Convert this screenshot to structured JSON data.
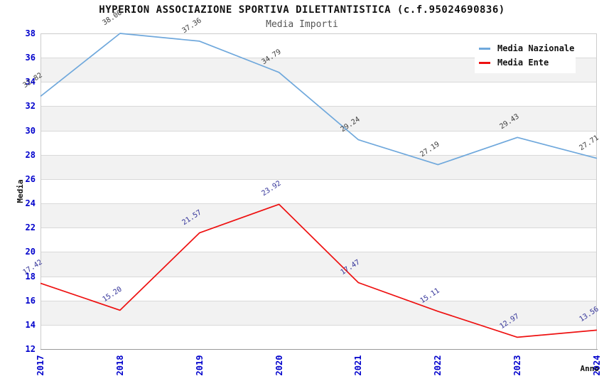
{
  "chart_data": {
    "type": "line",
    "title": "HYPERION ASSOCIAZIONE SPORTIVA DILETTANTISTICA (c.f.95024690836)",
    "subtitle": "Media Importi",
    "xlabel": "Anno",
    "ylabel": "Media",
    "categories": [
      "2017",
      "2018",
      "2019",
      "2020",
      "2021",
      "2022",
      "2023",
      "2024"
    ],
    "ylim": [
      12,
      38
    ],
    "yticks": [
      12,
      14,
      16,
      18,
      20,
      22,
      24,
      26,
      28,
      30,
      32,
      34,
      36,
      38
    ],
    "grid": "horizontal",
    "background_bands": "alternating gray between every other pair of gridlines",
    "legend_position": "top-right",
    "series": [
      {
        "name": "Media Nazionale",
        "color": "#6FA8DC",
        "label_color": "#3C3C3C",
        "values": [
          32.82,
          38.0,
          37.36,
          34.79,
          29.24,
          27.19,
          29.43,
          27.71
        ]
      },
      {
        "name": "Media Ente",
        "color": "#EE1111",
        "label_color": "#333399",
        "values": [
          17.42,
          15.2,
          21.57,
          23.92,
          17.47,
          15.11,
          12.97,
          13.56
        ]
      }
    ],
    "colors": {
      "tick_label": "#0000CC",
      "band": "#F2F2F2",
      "gridline": "#D9D9D9",
      "plot_border": "#CCCCCC",
      "axis_line": "#999999",
      "title": "#111111",
      "subtitle": "#555555",
      "legend_bg": "#FFFFFF"
    }
  }
}
